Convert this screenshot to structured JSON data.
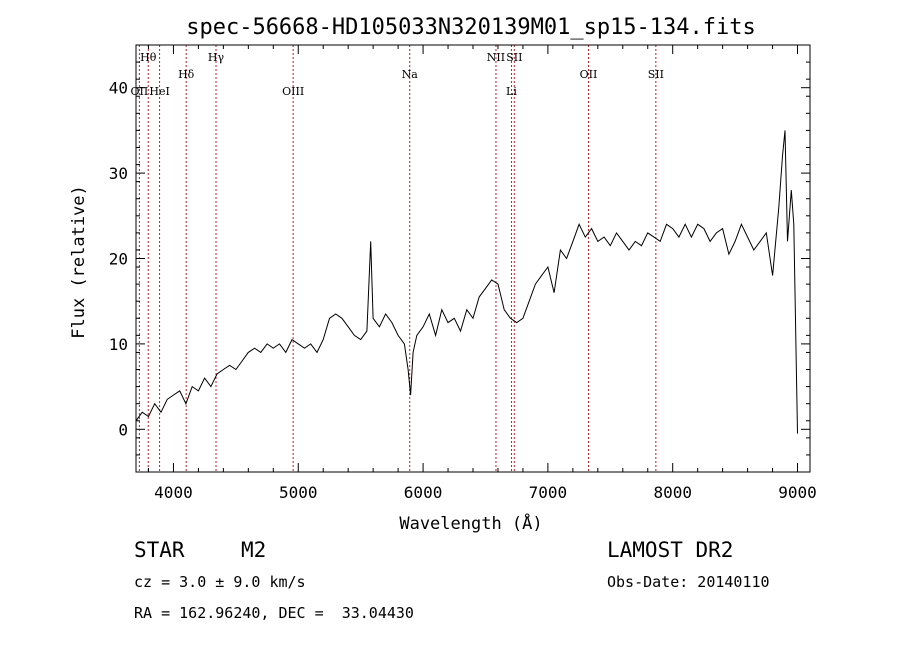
{
  "chart_data": {
    "type": "line",
    "title": "spec-56668-HD105033N320139M01_sp15-134.fits",
    "xlabel": "Wavelength (Å)",
    "ylabel": "Flux (relative)",
    "xlim": [
      3700,
      9100
    ],
    "ylim": [
      -5,
      45
    ],
    "xticks": [
      "4000",
      "5000",
      "6000",
      "7000",
      "8000",
      "9000"
    ],
    "yticks": [
      "0",
      "10",
      "20",
      "30",
      "40"
    ],
    "grid": false,
    "legend": "none",
    "line_color": "#000000",
    "marker_color": "#b22222",
    "spectral_lines": [
      {
        "label": "Hθ",
        "x": 3798,
        "row": "top"
      },
      {
        "label": "OII",
        "x": 3727,
        "row": "bottom"
      },
      {
        "label": "HeI",
        "x": 3889,
        "row": "bottom"
      },
      {
        "label": "Hδ",
        "x": 4102,
        "row": "middle"
      },
      {
        "label": "Hγ",
        "x": 4341,
        "row": "top"
      },
      {
        "label": "OIII",
        "x": 4959,
        "row": "bottom"
      },
      {
        "label": "Na",
        "x": 5893,
        "row": "middle"
      },
      {
        "label": "NII",
        "x": 6584,
        "row": "top"
      },
      {
        "label": "Li",
        "x": 6708,
        "row": "bottom"
      },
      {
        "label": "SII",
        "x": 6731,
        "row": "top"
      },
      {
        "label": "OII",
        "x": 7325,
        "row": "middle"
      },
      {
        "label": "SII",
        "x": 7865,
        "row": "middle"
      }
    ],
    "series": [
      {
        "x": [
          3700,
          3750,
          3800,
          3850,
          3900,
          3950,
          4000,
          4050,
          4100,
          4150,
          4200,
          4250,
          4300,
          4350,
          4400,
          4450,
          4500,
          4550,
          4600,
          4650,
          4700,
          4750,
          4800,
          4850,
          4900,
          4950,
          5000,
          5050,
          5100,
          5150,
          5200,
          5250,
          5300,
          5350,
          5400,
          5450,
          5500,
          5550,
          5580,
          5600,
          5650,
          5700,
          5750,
          5800,
          5850,
          5880,
          5900,
          5920,
          5950,
          6000,
          6050,
          6100,
          6150,
          6200,
          6250,
          6300,
          6350,
          6400,
          6450,
          6500,
          6550,
          6600,
          6650,
          6700,
          6750,
          6800,
          6850,
          6900,
          6950,
          7000,
          7050,
          7100,
          7150,
          7200,
          7250,
          7300,
          7350,
          7400,
          7450,
          7500,
          7550,
          7600,
          7650,
          7700,
          7750,
          7800,
          7850,
          7900,
          7950,
          8000,
          8050,
          8100,
          8150,
          8200,
          8250,
          8300,
          8350,
          8400,
          8450,
          8500,
          8550,
          8600,
          8650,
          8700,
          8750,
          8800,
          8850,
          8880,
          8900,
          8920,
          8950,
          8970,
          9000
        ],
        "y": [
          1,
          2,
          1.5,
          3,
          2,
          3.5,
          4,
          4.5,
          3,
          5,
          4.5,
          6,
          5,
          6.5,
          7,
          7.5,
          7,
          8,
          9,
          9.5,
          9,
          10,
          9.5,
          10,
          9,
          10.5,
          10,
          9.5,
          10,
          9,
          10.5,
          13,
          13.5,
          13,
          12,
          11,
          10.5,
          11.5,
          22,
          13,
          12,
          13.5,
          12.5,
          11,
          10,
          7,
          4,
          9,
          11,
          12,
          13.5,
          11,
          14,
          12.5,
          13,
          11.5,
          14,
          13,
          15.5,
          16.5,
          17.5,
          17,
          14,
          13,
          12.5,
          13,
          15,
          17,
          18,
          19,
          16,
          21,
          20,
          22,
          24,
          22.5,
          23.5,
          22,
          22.5,
          21.5,
          23,
          22,
          21,
          22,
          21.5,
          23,
          22.5,
          22,
          24,
          23.5,
          22.5,
          24,
          22.5,
          24,
          23.5,
          22,
          23,
          23.5,
          20.5,
          22,
          24,
          22.5,
          21,
          22,
          23,
          18,
          26,
          32,
          35,
          22,
          28,
          24,
          -0.5
        ]
      }
    ],
    "annotations": {
      "object_type": "STAR",
      "subclass": "M2",
      "survey": "LAMOST DR2",
      "redshift": "cz = 3.0 ± 9.0 km/s",
      "obs_date": "Obs-Date: 20140110",
      "coords": "RA = 162.96240, DEC =  33.04430"
    }
  }
}
